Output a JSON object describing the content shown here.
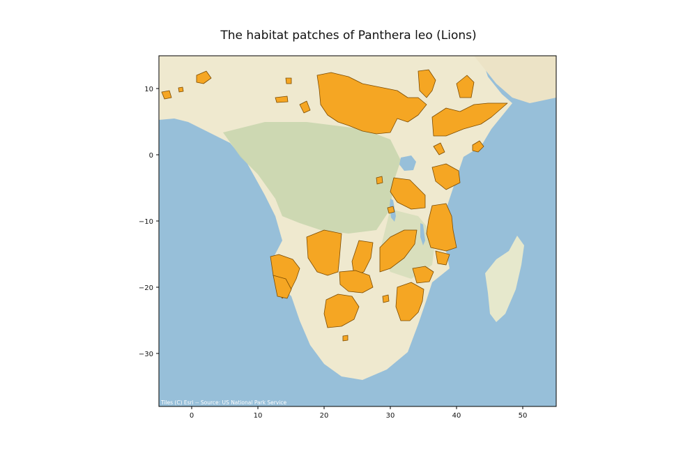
{
  "title": "The habitat patches of Panthera leo (Lions)",
  "attribution": "Tiles (C) Esri -- Source: US National Park Service",
  "axes": {
    "x_ticks": [
      "0",
      "10",
      "20",
      "30",
      "40",
      "50"
    ],
    "y_ticks": [
      "10",
      "0",
      "−10",
      "−20",
      "−30"
    ],
    "xlim": [
      -5,
      55
    ],
    "ylim": [
      -38,
      15
    ]
  },
  "colors": {
    "ocean": "#97bfd9",
    "land": "#e8e7c9",
    "vegetation": "#cad7b0",
    "habitat_fill": "#f5a623",
    "habitat_edge": "#7a4a00"
  }
}
